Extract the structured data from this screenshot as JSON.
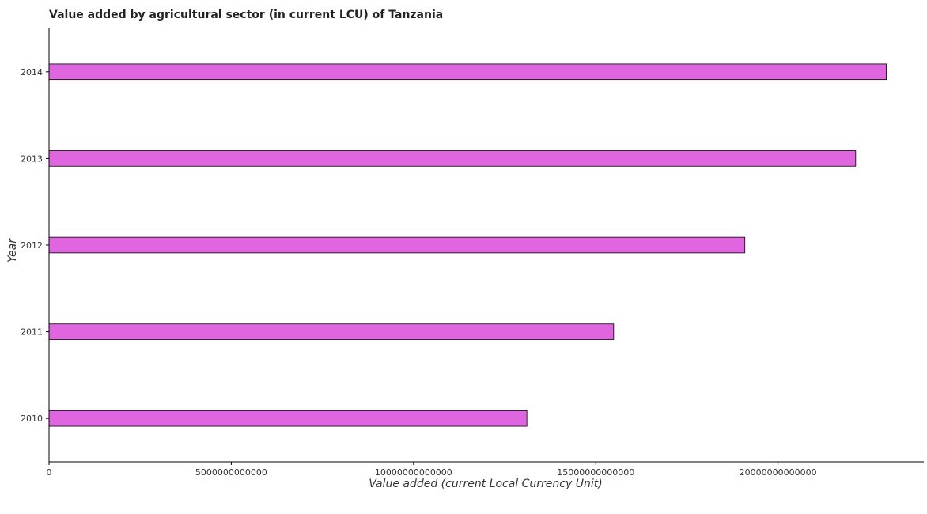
{
  "chart_data": {
    "type": "bar",
    "orientation": "horizontal",
    "title": "Value added by agricultural sector (in current LCU) of Tanzania",
    "xlabel": "Value added (current Local Currency Unit)",
    "ylabel": "Year",
    "categories": [
      "2010",
      "2011",
      "2012",
      "2013",
      "2014"
    ],
    "series": [
      {
        "values": [
          13110000000000,
          15490000000000,
          19090000000000,
          22130000000000,
          22970000000000
        ],
        "color": "#e066e0"
      }
    ],
    "xlim": [
      0,
      24000000000000
    ],
    "xticks": [
      0,
      5000000000000,
      10000000000000,
      15000000000000,
      20000000000000
    ],
    "xtick_labels": [
      "0",
      "5000000000000",
      "10000000000000",
      "15000000000000",
      "20000000000000"
    ],
    "grid": false,
    "legend": "none"
  }
}
